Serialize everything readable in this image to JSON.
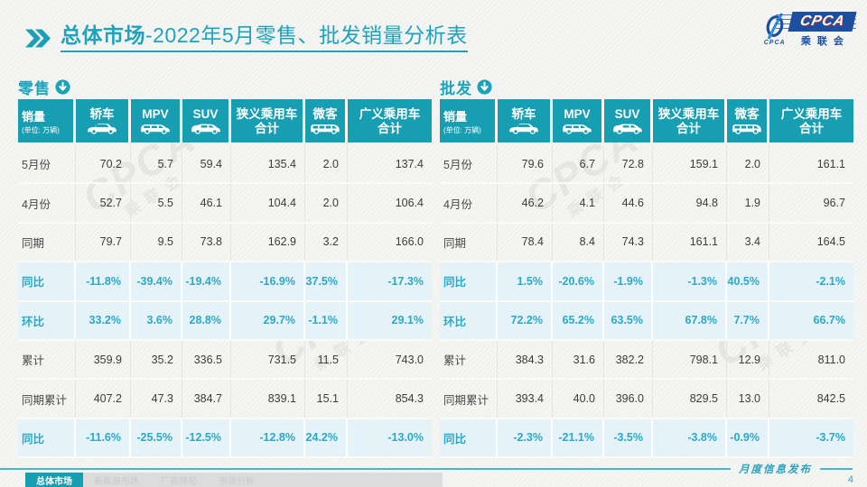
{
  "title": {
    "bold": "总体市场",
    "rest": "-2022年5月零售、批发销量分析表"
  },
  "logo": {
    "emblem_icon": "cpca-swirl-icon",
    "emblem_text": "CPCA",
    "name_en": "CPCA",
    "name_cn": "乘联会"
  },
  "tables": [
    {
      "id": "retail",
      "section_label": "零售",
      "section_icon": "down-circle-icon",
      "first_col": {
        "title": "销量",
        "unit": "(单位: 万辆)"
      },
      "columns": [
        {
          "label": "轿车",
          "icon": "sedan-icon"
        },
        {
          "label": "MPV",
          "icon": "mpv-icon"
        },
        {
          "label": "SUV",
          "icon": "suv-icon"
        },
        {
          "label": "狭义乘用车\n合计",
          "icon": ""
        },
        {
          "label": "微客",
          "icon": "microvan-icon"
        },
        {
          "label": "广义乘用车\n合计",
          "icon": ""
        }
      ],
      "rows": [
        {
          "label": "5月份",
          "highlight": false,
          "values": [
            "70.2",
            "5.7",
            "59.4",
            "135.4",
            "2.0",
            "137.4"
          ]
        },
        {
          "label": "4月份",
          "highlight": false,
          "values": [
            "52.7",
            "5.5",
            "46.1",
            "104.4",
            "2.0",
            "106.4"
          ]
        },
        {
          "label": "同期",
          "highlight": false,
          "values": [
            "79.7",
            "9.5",
            "73.8",
            "162.9",
            "3.2",
            "166.0"
          ]
        },
        {
          "label": "同比",
          "highlight": true,
          "values": [
            "-11.8%",
            "-39.4%",
            "-19.4%",
            "-16.9%",
            "-37.5%",
            "-17.3%"
          ]
        },
        {
          "label": "环比",
          "highlight": true,
          "values": [
            "33.2%",
            "3.6%",
            "28.8%",
            "29.7%",
            "-1.1%",
            "29.1%"
          ]
        },
        {
          "label": "累计",
          "highlight": false,
          "values": [
            "359.9",
            "35.2",
            "336.5",
            "731.5",
            "11.5",
            "743.0"
          ]
        },
        {
          "label": "同期累计",
          "highlight": false,
          "values": [
            "407.2",
            "47.3",
            "384.7",
            "839.1",
            "15.1",
            "854.3"
          ]
        },
        {
          "label": "同比",
          "highlight": true,
          "values": [
            "-11.6%",
            "-25.5%",
            "-12.5%",
            "-12.8%",
            "-24.2%",
            "-13.0%"
          ]
        }
      ]
    },
    {
      "id": "wholesale",
      "section_label": "批发",
      "section_icon": "down-circle-icon",
      "first_col": {
        "title": "销量",
        "unit": "(单位: 万辆)"
      },
      "columns": [
        {
          "label": "轿车",
          "icon": "sedan-icon"
        },
        {
          "label": "MPV",
          "icon": "mpv-icon"
        },
        {
          "label": "SUV",
          "icon": "suv-icon"
        },
        {
          "label": "狭义乘用车\n合计",
          "icon": ""
        },
        {
          "label": "微客",
          "icon": "microvan-icon"
        },
        {
          "label": "广义乘用车\n合计",
          "icon": ""
        }
      ],
      "rows": [
        {
          "label": "5月份",
          "highlight": false,
          "values": [
            "79.6",
            "6.7",
            "72.8",
            "159.1",
            "2.0",
            "161.1"
          ]
        },
        {
          "label": "4月份",
          "highlight": false,
          "values": [
            "46.2",
            "4.1",
            "44.6",
            "94.8",
            "1.9",
            "96.7"
          ]
        },
        {
          "label": "同期",
          "highlight": false,
          "values": [
            "78.4",
            "8.4",
            "74.3",
            "161.1",
            "3.4",
            "164.5"
          ]
        },
        {
          "label": "同比",
          "highlight": true,
          "values": [
            "1.5%",
            "-20.6%",
            "-1.9%",
            "-1.3%",
            "-40.5%",
            "-2.1%"
          ]
        },
        {
          "label": "环比",
          "highlight": true,
          "values": [
            "72.2%",
            "65.2%",
            "63.5%",
            "67.8%",
            "7.7%",
            "66.7%"
          ]
        },
        {
          "label": "累计",
          "highlight": false,
          "values": [
            "384.3",
            "31.6",
            "382.2",
            "798.1",
            "12.9",
            "811.0"
          ]
        },
        {
          "label": "同期累计",
          "highlight": false,
          "values": [
            "393.4",
            "40.0",
            "396.0",
            "829.5",
            "13.0",
            "842.5"
          ]
        },
        {
          "label": "同比",
          "highlight": true,
          "values": [
            "-2.3%",
            "-21.1%",
            "-3.5%",
            "-3.8%",
            "-0.9%",
            "-3.7%"
          ]
        }
      ]
    }
  ],
  "footer": {
    "tabs": [
      {
        "label": "总体市场",
        "active": true
      },
      {
        "label": "新能源市场",
        "active": false
      },
      {
        "label": "厂商排名",
        "active": false
      },
      {
        "label": "市场分析",
        "active": false
      }
    ],
    "publication_label": "月度信息发布",
    "page_number": "4"
  },
  "watermark": {
    "text_en": "CPCA",
    "text_cn": "乘联会"
  },
  "colors": {
    "accent_teal": "#189EB2",
    "title_teal": "#1CA4BE",
    "highlight_bg": "#E5F3F9",
    "highlight_text": "#2BA9C8",
    "logo_blue": "#1D4FA1"
  }
}
